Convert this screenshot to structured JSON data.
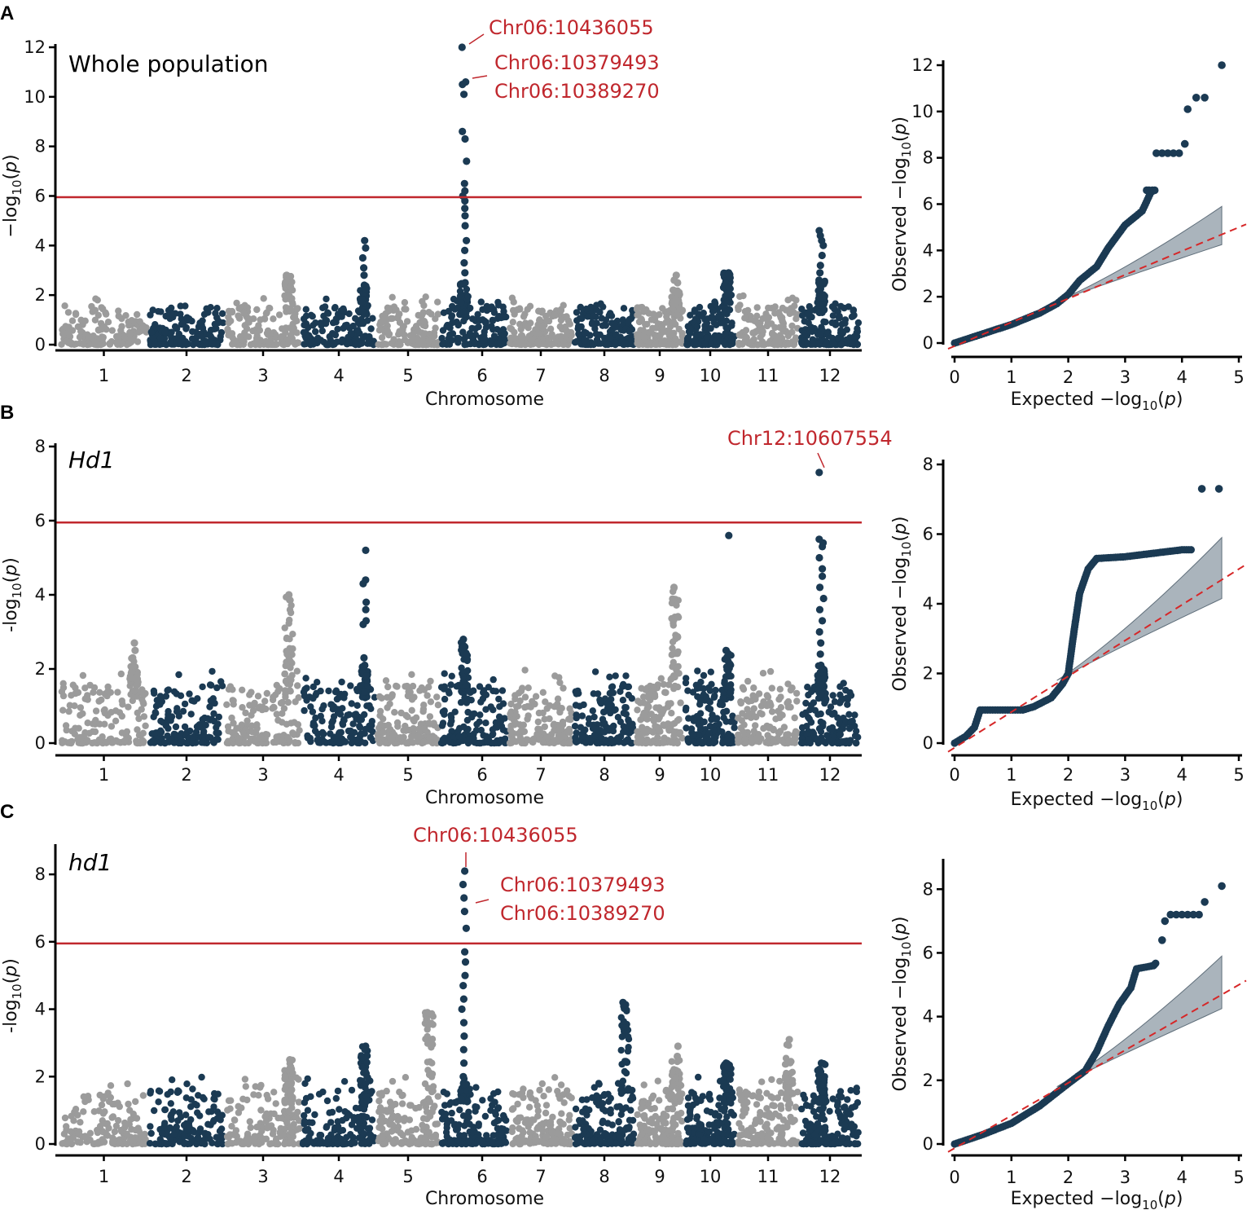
{
  "colors": {
    "dark": "#1b3a53",
    "light": "#9b9b9b",
    "threshold": "#c0272d",
    "annotation": "#c0272d",
    "ci_band": "#8e9ba6",
    "diagonal": "#d62728"
  },
  "chart_data": [
    {
      "type": "scatter",
      "subtype": "manhattan",
      "panel": "A",
      "title": "Whole population",
      "title_italic": false,
      "xlabel": "Chromosome",
      "ylabel_parts": [
        "−log",
        "10",
        "(",
        "p",
        ")"
      ],
      "categories": [
        "1",
        "2",
        "3",
        "4",
        "5",
        "6",
        "7",
        "8",
        "9",
        "10",
        "11",
        "12"
      ],
      "y_ticks": [
        0,
        2,
        4,
        6,
        8,
        10,
        12
      ],
      "ylim": [
        0,
        12
      ],
      "threshold": 5.95,
      "peaks": [
        {
          "chromosome": "6",
          "values": [
            12.0,
            10.6,
            10.5,
            10.1,
            8.6,
            8.3,
            7.4,
            6.5,
            6.2,
            6.0,
            5.8,
            5.5,
            5.2,
            4.8,
            4.2,
            3.8,
            3.3,
            2.9,
            2.5
          ]
        },
        {
          "chromosome": "4",
          "values": [
            4.2,
            3.9,
            3.5,
            3.1,
            2.8,
            2.4
          ]
        },
        {
          "chromosome": "12",
          "values": [
            4.6,
            4.4,
            4.2,
            4.0,
            3.6,
            3.2,
            2.9,
            2.6
          ]
        },
        {
          "chromosome": "3",
          "values": [
            2.8
          ]
        },
        {
          "chromosome": "9",
          "values": [
            2.8,
            2.6,
            2.5,
            2.2
          ]
        },
        {
          "chromosome": "10",
          "values": [
            2.9
          ]
        }
      ],
      "annotations": [
        {
          "label": "Chr06:10436055",
          "snp_value": 12.0
        },
        {
          "label": "Chr06:10379493",
          "snp_value": 10.6
        },
        {
          "label": "Chr06:10389270",
          "snp_value": 10.6
        }
      ]
    },
    {
      "type": "scatter",
      "subtype": "qq",
      "panel": "A",
      "xlabel_parts": [
        "Expected −log",
        "10",
        "(",
        "p",
        ")"
      ],
      "ylabel_parts": [
        "Observed −log",
        "10",
        "(",
        "p",
        ")"
      ],
      "x_ticks": [
        0,
        1,
        2,
        3,
        4,
        5
      ],
      "y_ticks": [
        0,
        2,
        4,
        6,
        8,
        10,
        12
      ],
      "xlim": [
        0,
        5
      ],
      "ylim": [
        0,
        12
      ],
      "observed_curve": [
        [
          0,
          0
        ],
        [
          0.5,
          0.4
        ],
        [
          1,
          0.8
        ],
        [
          1.5,
          1.3
        ],
        [
          1.8,
          1.7
        ],
        [
          2.0,
          2.1
        ],
        [
          2.2,
          2.7
        ],
        [
          2.5,
          3.3
        ],
        [
          2.7,
          4.1
        ],
        [
          3.0,
          5.1
        ],
        [
          3.3,
          5.7
        ],
        [
          3.45,
          6.5
        ],
        [
          3.5,
          6.6
        ]
      ],
      "top_points": [
        [
          3.55,
          8.2
        ],
        [
          3.65,
          8.2
        ],
        [
          3.75,
          8.2
        ],
        [
          3.85,
          8.2
        ],
        [
          3.95,
          8.2
        ],
        [
          4.05,
          8.6
        ],
        [
          4.1,
          10.1
        ],
        [
          4.25,
          10.6
        ],
        [
          4.4,
          10.6
        ],
        [
          4.7,
          12.0
        ],
        [
          3.52,
          6.6
        ],
        [
          3.48,
          6.6
        ],
        [
          3.42,
          6.6
        ],
        [
          3.38,
          6.6
        ]
      ],
      "ci_upper_end": 5.9,
      "ci_lower_end": 4.25
    },
    {
      "type": "scatter",
      "subtype": "manhattan",
      "panel": "B",
      "title": "Hd1",
      "title_italic": true,
      "xlabel": "Chromosome",
      "ylabel_parts": [
        "-log",
        "10",
        "(",
        "p",
        ")"
      ],
      "categories": [
        "1",
        "2",
        "3",
        "4",
        "5",
        "6",
        "7",
        "8",
        "9",
        "10",
        "11",
        "12"
      ],
      "y_ticks": [
        0,
        2,
        4,
        6,
        8
      ],
      "ylim": [
        0,
        8
      ],
      "threshold": 5.95,
      "peaks": [
        {
          "chromosome": "12",
          "values": [
            7.3,
            5.5,
            5.4,
            5.3,
            5.0,
            4.7,
            4.5,
            4.2,
            3.9,
            3.6,
            3.3,
            3.0,
            2.7,
            2.4,
            2.1
          ]
        },
        {
          "chromosome": "4",
          "values": [
            5.2,
            4.4,
            4.3,
            3.8,
            3.6,
            3.3,
            3.2,
            2.3,
            2.1
          ]
        },
        {
          "chromosome": "10",
          "values": [
            5.6,
            2.5
          ]
        },
        {
          "chromosome": "3",
          "values": [
            4.0
          ]
        },
        {
          "chromosome": "9",
          "values": [
            4.2
          ]
        },
        {
          "chromosome": "1",
          "values": [
            2.7,
            2.5,
            2.3
          ]
        },
        {
          "chromosome": "6",
          "values": [
            2.8
          ]
        }
      ],
      "annotations": [
        {
          "label": "Chr12:10607554",
          "snp_value": 7.3
        }
      ]
    },
    {
      "type": "scatter",
      "subtype": "qq",
      "panel": "B",
      "xlabel_parts": [
        "Expected −log",
        "10",
        "(",
        "p",
        ")"
      ],
      "ylabel_parts": [
        "Observed −log",
        "10",
        "(",
        "p",
        ")"
      ],
      "x_ticks": [
        0,
        1,
        2,
        3,
        4,
        5
      ],
      "y_ticks": [
        0,
        2,
        4,
        6,
        8
      ],
      "xlim": [
        0,
        5
      ],
      "ylim": [
        0,
        8
      ],
      "observed_curve": [
        [
          0,
          0
        ],
        [
          0.2,
          0.2
        ],
        [
          0.35,
          0.45
        ],
        [
          0.45,
          0.95
        ],
        [
          1.2,
          0.95
        ],
        [
          1.4,
          1.05
        ],
        [
          1.7,
          1.3
        ],
        [
          1.9,
          1.7
        ],
        [
          2.0,
          2.0
        ],
        [
          2.1,
          3.2
        ],
        [
          2.2,
          4.3
        ],
        [
          2.35,
          5.0
        ],
        [
          2.5,
          5.3
        ],
        [
          3.0,
          5.35
        ],
        [
          3.5,
          5.45
        ],
        [
          4.0,
          5.55
        ],
        [
          4.2,
          5.55
        ]
      ],
      "top_points": [
        [
          4.35,
          7.3
        ],
        [
          4.65,
          7.3
        ]
      ],
      "ci_upper_end": 5.9,
      "ci_lower_end": 4.15
    },
    {
      "type": "scatter",
      "subtype": "manhattan",
      "panel": "C",
      "title": "hd1",
      "title_italic": true,
      "xlabel": "Chromosome",
      "ylabel_parts": [
        "-log",
        "10",
        "(",
        "p",
        ")"
      ],
      "categories": [
        "1",
        "2",
        "3",
        "4",
        "5",
        "6",
        "7",
        "8",
        "9",
        "10",
        "11",
        "12"
      ],
      "y_ticks": [
        0,
        2,
        4,
        6,
        8
      ],
      "ylim": [
        0,
        8.8
      ],
      "threshold": 5.95,
      "peaks": [
        {
          "chromosome": "6",
          "values": [
            8.1,
            7.7,
            7.3,
            6.9,
            6.4,
            5.7,
            5.4,
            5.0,
            4.7,
            4.3,
            4.0,
            3.6,
            3.2,
            2.8,
            2.4,
            2.0,
            1.8
          ]
        },
        {
          "chromosome": "8",
          "values": [
            4.2
          ]
        },
        {
          "chromosome": "5",
          "values": [
            3.9
          ]
        },
        {
          "chromosome": "11",
          "values": [
            3.1
          ]
        },
        {
          "chromosome": "4",
          "values": [
            2.9
          ]
        },
        {
          "chromosome": "9",
          "values": [
            2.9,
            2.6
          ]
        },
        {
          "chromosome": "3",
          "values": [
            2.5
          ]
        },
        {
          "chromosome": "10",
          "values": [
            2.4
          ]
        },
        {
          "chromosome": "12",
          "values": [
            2.4
          ]
        }
      ],
      "annotations": [
        {
          "label": "Chr06:10436055",
          "snp_value": 8.1
        },
        {
          "label": "Chr06:10379493",
          "snp_value": 7.3
        },
        {
          "label": "Chr06:10389270",
          "snp_value": 7.3
        }
      ]
    },
    {
      "type": "scatter",
      "subtype": "qq",
      "panel": "C",
      "xlabel_parts": [
        "Expected −log",
        "10",
        "(",
        "p",
        ")"
      ],
      "ylabel_parts": [
        "Observed −log",
        "10",
        "(",
        "p",
        ")"
      ],
      "x_ticks": [
        0,
        1,
        2,
        3,
        4,
        5
      ],
      "y_ticks": [
        0,
        2,
        4,
        6,
        8
      ],
      "xlim": [
        0,
        5
      ],
      "ylim": [
        0,
        8.8
      ],
      "observed_curve": [
        [
          0,
          0
        ],
        [
          0.5,
          0.3
        ],
        [
          1,
          0.65
        ],
        [
          1.5,
          1.2
        ],
        [
          2.0,
          1.9
        ],
        [
          2.3,
          2.3
        ],
        [
          2.5,
          2.9
        ],
        [
          2.7,
          3.7
        ],
        [
          2.9,
          4.4
        ],
        [
          3.1,
          4.9
        ],
        [
          3.2,
          5.5
        ],
        [
          3.5,
          5.6
        ],
        [
          3.55,
          5.7
        ]
      ],
      "top_points": [
        [
          3.65,
          6.4
        ],
        [
          3.7,
          7.0
        ],
        [
          3.8,
          7.2
        ],
        [
          3.9,
          7.2
        ],
        [
          4.0,
          7.2
        ],
        [
          4.1,
          7.2
        ],
        [
          4.2,
          7.2
        ],
        [
          4.3,
          7.2
        ],
        [
          4.4,
          7.6
        ],
        [
          4.7,
          8.1
        ]
      ],
      "ci_upper_end": 5.9,
      "ci_lower_end": 4.25
    }
  ]
}
